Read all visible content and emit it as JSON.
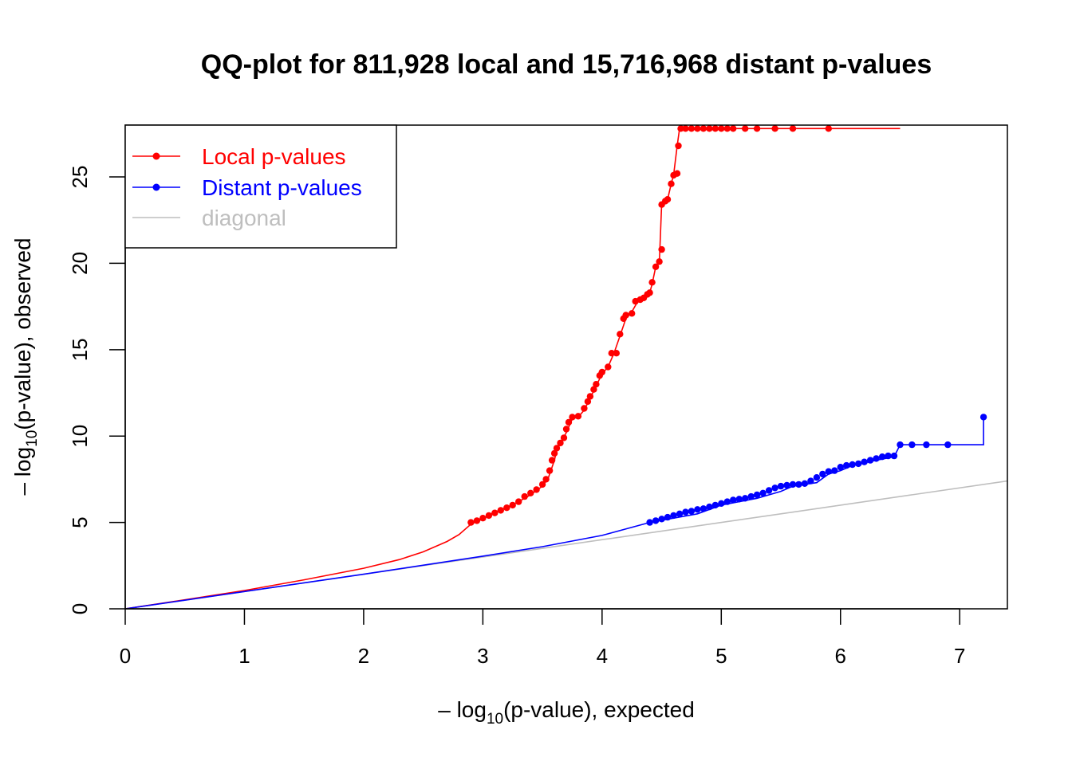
{
  "chart_data": {
    "type": "line",
    "title": "QQ-plot for 811,928 local and 15,716,968 distant p-values",
    "xlabel": {
      "prefix": "– log",
      "sub": "10",
      "suffix": "(p-value), expected"
    },
    "ylabel": {
      "prefix": "– log",
      "sub": "10",
      "suffix": "(p-value), observed"
    },
    "xlim": [
      0,
      7.4
    ],
    "ylim": [
      0,
      28
    ],
    "x_ticks": [
      0,
      1,
      2,
      3,
      4,
      5,
      6,
      7
    ],
    "y_ticks": [
      0,
      5,
      10,
      15,
      20,
      25
    ],
    "legend": {
      "position": "top-left",
      "entries": [
        {
          "label": "Local p-values",
          "color": "#ff0000",
          "marker": "point-line"
        },
        {
          "label": "Distant p-values",
          "color": "#0000ff",
          "marker": "point-line"
        },
        {
          "label": "diagonal",
          "color": "#bebebe",
          "marker": "line"
        }
      ]
    },
    "series": [
      {
        "name": "Local p-values",
        "color": "#ff0000",
        "line": [
          [
            0,
            0
          ],
          [
            0.5,
            0.52
          ],
          [
            1,
            1.06
          ],
          [
            1.5,
            1.68
          ],
          [
            2,
            2.35
          ],
          [
            2.3,
            2.85
          ],
          [
            2.5,
            3.3
          ],
          [
            2.7,
            3.9
          ],
          [
            2.8,
            4.3
          ],
          [
            2.9,
            4.9
          ],
          [
            3.0,
            5.2
          ],
          [
            3.1,
            5.6
          ],
          [
            3.2,
            5.85
          ],
          [
            3.3,
            6.2
          ],
          [
            3.4,
            6.6
          ],
          [
            3.5,
            7.1
          ],
          [
            3.55,
            7.6
          ],
          [
            3.6,
            8.6
          ],
          [
            3.62,
            9.2
          ],
          [
            3.65,
            9.6
          ],
          [
            3.7,
            10.2
          ],
          [
            3.75,
            11.0
          ],
          [
            3.8,
            11.1
          ],
          [
            3.85,
            11.5
          ],
          [
            3.9,
            12.2
          ],
          [
            3.95,
            12.9
          ],
          [
            4.0,
            13.6
          ],
          [
            4.05,
            14.0
          ],
          [
            4.1,
            14.8
          ],
          [
            4.15,
            15.8
          ],
          [
            4.2,
            16.8
          ],
          [
            4.25,
            17.2
          ],
          [
            4.3,
            17.8
          ],
          [
            4.35,
            18.0
          ],
          [
            4.4,
            18.3
          ],
          [
            4.42,
            18.8
          ],
          [
            4.45,
            19.8
          ],
          [
            4.48,
            20.0
          ],
          [
            4.5,
            23.5
          ],
          [
            4.55,
            23.7
          ],
          [
            4.58,
            24.6
          ],
          [
            4.6,
            25.1
          ],
          [
            4.63,
            26.8
          ],
          [
            4.65,
            27.8
          ],
          [
            6.5,
            27.8
          ]
        ],
        "points": [
          [
            2.9,
            5.0
          ],
          [
            2.95,
            5.1
          ],
          [
            3.0,
            5.25
          ],
          [
            3.05,
            5.4
          ],
          [
            3.1,
            5.55
          ],
          [
            3.15,
            5.7
          ],
          [
            3.2,
            5.85
          ],
          [
            3.25,
            6.0
          ],
          [
            3.3,
            6.2
          ],
          [
            3.35,
            6.5
          ],
          [
            3.4,
            6.7
          ],
          [
            3.45,
            6.9
          ],
          [
            3.5,
            7.2
          ],
          [
            3.53,
            7.5
          ],
          [
            3.56,
            8.0
          ],
          [
            3.58,
            8.6
          ],
          [
            3.6,
            9.0
          ],
          [
            3.62,
            9.3
          ],
          [
            3.65,
            9.6
          ],
          [
            3.68,
            9.9
          ],
          [
            3.7,
            10.4
          ],
          [
            3.72,
            10.8
          ],
          [
            3.75,
            11.1
          ],
          [
            3.8,
            11.15
          ],
          [
            3.85,
            11.6
          ],
          [
            3.88,
            12.0
          ],
          [
            3.9,
            12.3
          ],
          [
            3.93,
            12.7
          ],
          [
            3.95,
            13.0
          ],
          [
            3.98,
            13.5
          ],
          [
            4.0,
            13.7
          ],
          [
            4.05,
            14.0
          ],
          [
            4.08,
            14.8
          ],
          [
            4.12,
            14.8
          ],
          [
            4.15,
            15.9
          ],
          [
            4.18,
            16.8
          ],
          [
            4.2,
            17.0
          ],
          [
            4.25,
            17.1
          ],
          [
            4.28,
            17.8
          ],
          [
            4.32,
            17.9
          ],
          [
            4.35,
            18.0
          ],
          [
            4.38,
            18.2
          ],
          [
            4.4,
            18.3
          ],
          [
            4.42,
            18.9
          ],
          [
            4.45,
            19.8
          ],
          [
            4.48,
            20.1
          ],
          [
            4.5,
            20.8
          ],
          [
            4.5,
            23.4
          ],
          [
            4.53,
            23.6
          ],
          [
            4.55,
            23.7
          ],
          [
            4.58,
            24.6
          ],
          [
            4.6,
            25.1
          ],
          [
            4.63,
            25.2
          ],
          [
            4.64,
            26.8
          ],
          [
            4.66,
            27.8
          ],
          [
            4.7,
            27.8
          ],
          [
            4.75,
            27.8
          ],
          [
            4.8,
            27.8
          ],
          [
            4.85,
            27.8
          ],
          [
            4.9,
            27.8
          ],
          [
            4.95,
            27.8
          ],
          [
            5.0,
            27.8
          ],
          [
            5.05,
            27.8
          ],
          [
            5.1,
            27.8
          ],
          [
            5.2,
            27.8
          ],
          [
            5.3,
            27.8
          ],
          [
            5.45,
            27.8
          ],
          [
            5.6,
            27.8
          ],
          [
            5.9,
            27.8
          ]
        ]
      },
      {
        "name": "Distant p-values",
        "color": "#0000ff",
        "line": [
          [
            0,
            0
          ],
          [
            1,
            1.0
          ],
          [
            2,
            2.0
          ],
          [
            3,
            3.05
          ],
          [
            3.5,
            3.6
          ],
          [
            4.0,
            4.25
          ],
          [
            4.4,
            5.0
          ],
          [
            4.8,
            5.5
          ],
          [
            5.0,
            6.0
          ],
          [
            5.3,
            6.4
          ],
          [
            5.5,
            6.8
          ],
          [
            5.6,
            7.1
          ],
          [
            5.7,
            7.2
          ],
          [
            5.8,
            7.3
          ],
          [
            5.9,
            7.8
          ],
          [
            6.0,
            8.0
          ],
          [
            6.1,
            8.3
          ],
          [
            6.3,
            8.6
          ],
          [
            6.45,
            8.8
          ],
          [
            6.5,
            9.5
          ],
          [
            7.2,
            9.5
          ],
          [
            7.2,
            11.1
          ]
        ],
        "points": [
          [
            4.4,
            5.0
          ],
          [
            4.45,
            5.1
          ],
          [
            4.5,
            5.2
          ],
          [
            4.55,
            5.3
          ],
          [
            4.6,
            5.4
          ],
          [
            4.65,
            5.5
          ],
          [
            4.7,
            5.6
          ],
          [
            4.75,
            5.65
          ],
          [
            4.8,
            5.75
          ],
          [
            4.85,
            5.8
          ],
          [
            4.9,
            5.9
          ],
          [
            4.95,
            6.0
          ],
          [
            5.0,
            6.1
          ],
          [
            5.05,
            6.2
          ],
          [
            5.1,
            6.3
          ],
          [
            5.15,
            6.35
          ],
          [
            5.2,
            6.4
          ],
          [
            5.25,
            6.5
          ],
          [
            5.3,
            6.6
          ],
          [
            5.35,
            6.7
          ],
          [
            5.4,
            6.85
          ],
          [
            5.45,
            7.0
          ],
          [
            5.5,
            7.1
          ],
          [
            5.55,
            7.15
          ],
          [
            5.6,
            7.2
          ],
          [
            5.65,
            7.2
          ],
          [
            5.7,
            7.25
          ],
          [
            5.75,
            7.4
          ],
          [
            5.8,
            7.6
          ],
          [
            5.85,
            7.8
          ],
          [
            5.9,
            7.95
          ],
          [
            5.95,
            8.0
          ],
          [
            6.0,
            8.2
          ],
          [
            6.05,
            8.3
          ],
          [
            6.1,
            8.35
          ],
          [
            6.15,
            8.4
          ],
          [
            6.2,
            8.5
          ],
          [
            6.25,
            8.6
          ],
          [
            6.3,
            8.7
          ],
          [
            6.35,
            8.8
          ],
          [
            6.4,
            8.85
          ],
          [
            6.45,
            8.85
          ],
          [
            6.5,
            9.5
          ],
          [
            6.6,
            9.5
          ],
          [
            6.72,
            9.5
          ],
          [
            6.9,
            9.5
          ],
          [
            7.2,
            11.1
          ]
        ]
      },
      {
        "name": "diagonal",
        "color": "#bebebe",
        "line": [
          [
            0,
            0
          ],
          [
            7.4,
            7.4
          ]
        ]
      }
    ]
  }
}
